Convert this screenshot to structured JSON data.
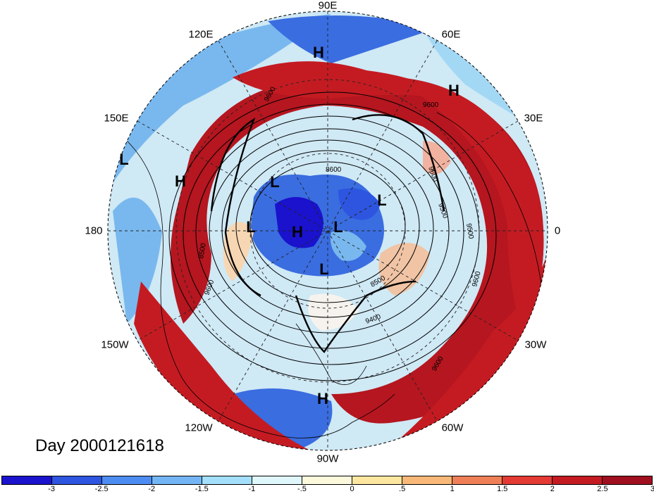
{
  "title": "Day 2000121618",
  "longitude_labels": [
    {
      "text": "90E",
      "lon": 90
    },
    {
      "text": "60E",
      "lon": 60
    },
    {
      "text": "120E",
      "lon": 120
    },
    {
      "text": "30E",
      "lon": 30
    },
    {
      "text": "150E",
      "lon": 150
    },
    {
      "text": "0",
      "lon": 0
    },
    {
      "text": "180",
      "lon": 180
    },
    {
      "text": "30W",
      "lon": -30
    },
    {
      "text": "150W",
      "lon": -150
    },
    {
      "text": "60W",
      "lon": -60
    },
    {
      "text": "120W",
      "lon": -120
    },
    {
      "text": "90W",
      "lon": -90
    }
  ],
  "pressure_centers": [
    {
      "type": "H",
      "label": "H"
    },
    {
      "type": "H",
      "label": "H"
    },
    {
      "type": "L",
      "label": "L"
    },
    {
      "type": "H",
      "label": "H"
    },
    {
      "type": "L",
      "label": "L"
    },
    {
      "type": "L",
      "label": "L"
    },
    {
      "type": "L",
      "label": "L"
    },
    {
      "type": "H",
      "label": "H"
    },
    {
      "type": "L",
      "label": "L"
    },
    {
      "type": "L",
      "label": "L"
    },
    {
      "type": "H",
      "label": "H"
    }
  ],
  "contour_labels": [
    "9600",
    "9600",
    "8600",
    "8500",
    "9500",
    "9600",
    "8500",
    "9400",
    "9600",
    "9600",
    "9600",
    "9500"
  ],
  "colorbar": {
    "colors": [
      "#1a12cc",
      "#2d55e0",
      "#4d8cf0",
      "#73b5f5",
      "#a3defa",
      "#dff6fb",
      "#fbf8dc",
      "#fde6a0",
      "#f7b878",
      "#ef7f57",
      "#e33a34",
      "#c41b22",
      "#a00f1f"
    ],
    "ticks": [
      "-3",
      "-2.5",
      "-2",
      "-1.5",
      "-1",
      "-.5",
      "0",
      ".5",
      "1",
      "1.5",
      "2",
      "2.5",
      "3"
    ]
  },
  "colors": {
    "warm": "#b5161f",
    "cold": "#3a6de0",
    "neutral": "#f6f3ee"
  }
}
